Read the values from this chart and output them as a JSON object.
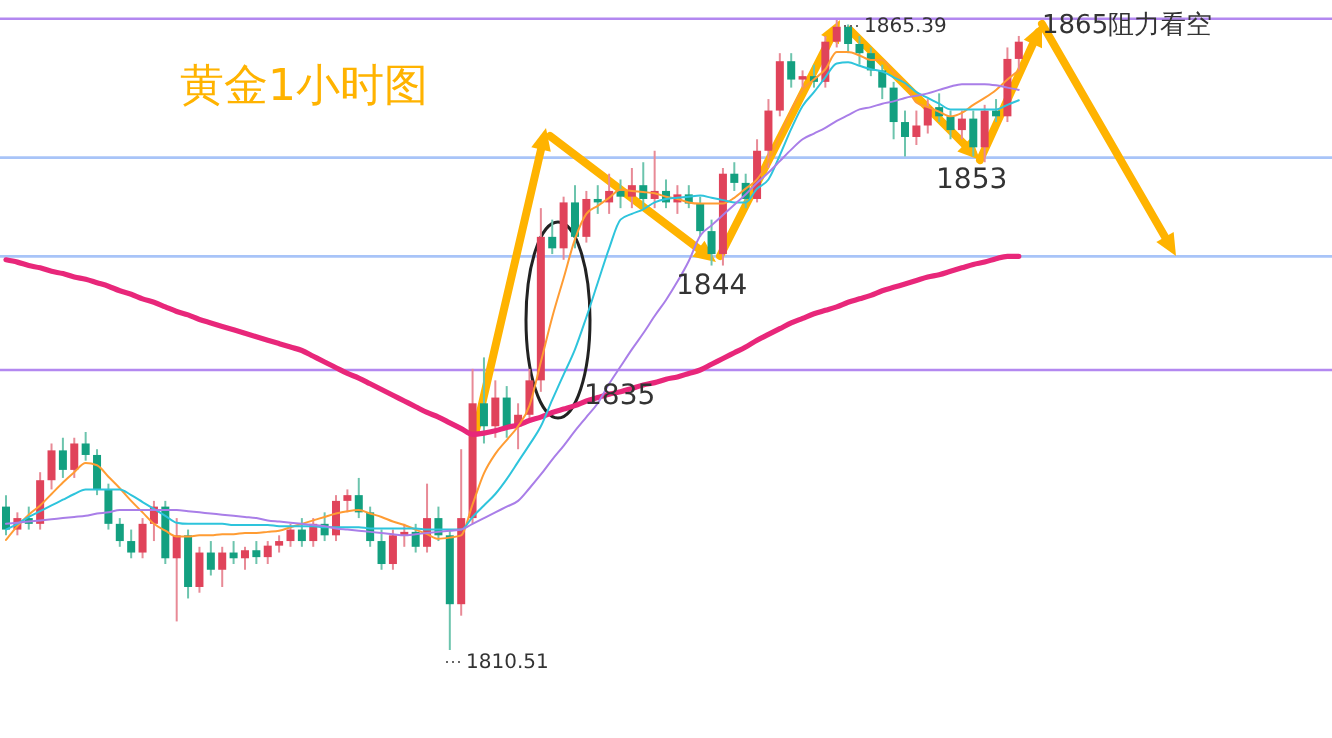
{
  "chart_data": {
    "type": "candlestick",
    "title": "黄金1小时图",
    "categories": [
      null,
      null,
      null,
      null,
      null,
      null,
      null,
      null,
      null,
      null,
      null,
      null,
      null,
      null,
      null,
      null,
      null,
      null,
      null,
      null,
      null,
      null,
      null,
      null,
      null,
      null,
      null,
      null,
      null,
      null,
      null,
      null,
      null,
      null,
      null,
      null,
      null,
      null,
      null,
      null,
      null,
      null,
      null,
      null,
      null,
      null,
      null,
      null,
      null,
      null,
      null,
      null,
      null,
      null,
      null,
      null,
      null,
      null,
      null,
      null,
      null,
      null,
      null,
      null,
      null,
      null,
      null,
      null,
      null,
      null,
      null,
      null,
      null,
      null,
      null,
      null,
      null,
      null,
      null,
      null,
      null,
      null,
      null,
      null,
      null,
      null,
      null,
      null,
      null,
      null
    ],
    "ohlc": [
      [
        1823.0,
        1824,
        1820.5,
        1821.0
      ],
      [
        1821.0,
        1822.5,
        1820.5,
        1822.0
      ],
      [
        1822,
        1823,
        1821,
        1821.5
      ],
      [
        1821.5,
        1826,
        1821,
        1825.3
      ],
      [
        1825.3,
        1828.5,
        1824.5,
        1827.9
      ],
      [
        1827.9,
        1829,
        1825.5,
        1826.2
      ],
      [
        1826.2,
        1829,
        1825.5,
        1828.5
      ],
      [
        1828.5,
        1829.5,
        1827,
        1827.5
      ],
      [
        1827.5,
        1828,
        1824,
        1824.5
      ],
      [
        1824.5,
        1825,
        1821,
        1821.5
      ],
      [
        1821.5,
        1822,
        1819.5,
        1820
      ],
      [
        1820,
        1821,
        1818.5,
        1819
      ],
      [
        1819,
        1822,
        1818.5,
        1821.5
      ],
      [
        1821.5,
        1823.5,
        1820,
        1823
      ],
      [
        1823,
        1823.5,
        1818,
        1818.5
      ],
      [
        1818.5,
        1822,
        1813,
        1820.5
      ],
      [
        1820.5,
        1821,
        1815,
        1816
      ],
      [
        1816,
        1819.5,
        1815.5,
        1819
      ],
      [
        1819,
        1820,
        1817,
        1817.5
      ],
      [
        1817.5,
        1819.5,
        1816,
        1819
      ],
      [
        1819,
        1820,
        1818,
        1818.5
      ],
      [
        1818.5,
        1819.5,
        1817.5,
        1819.2
      ],
      [
        1819.2,
        1820,
        1818,
        1818.6
      ],
      [
        1818.6,
        1820,
        1818,
        1819.6
      ],
      [
        1819.6,
        1820.5,
        1819,
        1820
      ],
      [
        1820,
        1821.5,
        1819.5,
        1821
      ],
      [
        1821,
        1822,
        1819.5,
        1820
      ],
      [
        1820,
        1822,
        1819.5,
        1821.5
      ],
      [
        1821.5,
        1822.5,
        1820,
        1820.5
      ],
      [
        1820.5,
        1824,
        1820,
        1823.5
      ],
      [
        1823.5,
        1824.5,
        1822.5,
        1824
      ],
      [
        1824,
        1825.5,
        1822,
        1822.5
      ],
      [
        1822.5,
        1823,
        1819.5,
        1820
      ],
      [
        1820,
        1821,
        1817.5,
        1818
      ],
      [
        1818,
        1821,
        1817.5,
        1820.5
      ],
      [
        1820.5,
        1821.5,
        1819.5,
        1820.8
      ],
      [
        1820.8,
        1821.5,
        1819,
        1819.5
      ],
      [
        1819.5,
        1825,
        1819,
        1822
      ],
      [
        1822,
        1823,
        1820,
        1820.5
      ],
      [
        1820.5,
        1821,
        1810.51,
        1814.5
      ],
      [
        1814.5,
        1828,
        1813.5,
        1822
      ],
      [
        1822,
        1835,
        1821.5,
        1832
      ],
      [
        1832,
        1836,
        1828.5,
        1830
      ],
      [
        1830,
        1834,
        1829,
        1832.5
      ],
      [
        1832.5,
        1833.5,
        1829,
        1830
      ],
      [
        1830,
        1832,
        1828,
        1831
      ],
      [
        1831,
        1835,
        1830.5,
        1834
      ],
      [
        1834,
        1849,
        1833,
        1846.5
      ],
      [
        1846.5,
        1848,
        1845,
        1845.5
      ],
      [
        1845.5,
        1850,
        1844.5,
        1849.5
      ],
      [
        1849.5,
        1851,
        1845.5,
        1846.5
      ],
      [
        1846.5,
        1850.5,
        1846,
        1849.8
      ],
      [
        1849.8,
        1851,
        1848.5,
        1849.5
      ],
      [
        1849.5,
        1852,
        1848.5,
        1850.5
      ],
      [
        1850.5,
        1851.5,
        1849,
        1850
      ],
      [
        1850,
        1852.5,
        1849,
        1851
      ],
      [
        1851,
        1853,
        1849,
        1849.8
      ],
      [
        1849.8,
        1854,
        1849,
        1850.5
      ],
      [
        1850.5,
        1851.5,
        1849,
        1849.5
      ],
      [
        1849.5,
        1851,
        1848.5,
        1850.2
      ],
      [
        1850.2,
        1851,
        1849,
        1849.4
      ],
      [
        1849.4,
        1850,
        1846.5,
        1847
      ],
      [
        1847,
        1848,
        1844,
        1845
      ],
      [
        1845,
        1852.5,
        1844,
        1852
      ],
      [
        1852,
        1853,
        1850.5,
        1851.2
      ],
      [
        1851.2,
        1852,
        1849,
        1849.8
      ],
      [
        1849.8,
        1855,
        1849.5,
        1854
      ],
      [
        1854,
        1858.5,
        1852.5,
        1857.5
      ],
      [
        1857.5,
        1862.5,
        1857,
        1861.8
      ],
      [
        1861.8,
        1862.5,
        1859.5,
        1860.2
      ],
      [
        1860.2,
        1861,
        1859.5,
        1860.5
      ],
      [
        1860.5,
        1861.5,
        1859.5,
        1860.0
      ],
      [
        1860,
        1864,
        1859.5,
        1863.5
      ],
      [
        1863.5,
        1865.39,
        1863,
        1864.8
      ],
      [
        1864.8,
        1865,
        1862.5,
        1863.3
      ],
      [
        1863.3,
        1864,
        1861.5,
        1862.5
      ],
      [
        1862.5,
        1863,
        1860.5,
        1861
      ],
      [
        1861,
        1861.5,
        1858.5,
        1859.5
      ],
      [
        1859.5,
        1860,
        1855,
        1856.5
      ],
      [
        1856.5,
        1857.5,
        1853.5,
        1855.2
      ],
      [
        1855.2,
        1857.5,
        1854.5,
        1856.2
      ],
      [
        1856.2,
        1858.5,
        1855.5,
        1857.8
      ],
      [
        1857.8,
        1859,
        1856.5,
        1857
      ],
      [
        1857,
        1857.5,
        1855,
        1855.8
      ],
      [
        1855.8,
        1857.5,
        1855,
        1856.8
      ],
      [
        1856.8,
        1857.5,
        1853.5,
        1854.3
      ],
      [
        1854.3,
        1858,
        1853,
        1857.5
      ],
      [
        1857.5,
        1858.5,
        1856.5,
        1857
      ],
      [
        1857,
        1863,
        1856.5,
        1862
      ],
      [
        1862,
        1864,
        1861,
        1863.5
      ]
    ],
    "series": [
      {
        "type": "line",
        "color": "#ff9c33",
        "values": [
          1820.1,
          1821.3,
          1822.3,
          1823.1,
          1824.1,
          1825.1,
          1826.0,
          1826.8,
          1826.6,
          1825.6,
          1824.6,
          1823.5,
          1822.5,
          1821.5,
          1820.9,
          1820.4,
          1820.4,
          1820.5,
          1820.5,
          1820.6,
          1820.6,
          1820.7,
          1820.7,
          1820.8,
          1820.9,
          1821.2,
          1821.5,
          1821.8,
          1822.1,
          1822.4,
          1822.6,
          1822.7,
          1822.4,
          1822.1,
          1821.7,
          1821.4,
          1821.0,
          1820.6,
          1820.2,
          1820.3,
          1820.5,
          1823.2,
          1825.9,
          1827.6,
          1828.8,
          1830.0,
          1831.8,
          1835.6,
          1839.5,
          1842.9,
          1846.3,
          1848.5,
          1849.2,
          1849.9,
          1850.6,
          1850.5,
          1850.4,
          1850.3,
          1850.0,
          1849.8,
          1849.5,
          1849.4,
          1849.4,
          1849.4,
          1849.9,
          1850.7,
          1851.5,
          1853.1,
          1855.3,
          1857.5,
          1859.3,
          1860.2,
          1861.1,
          1862.6,
          1862.6,
          1862.3,
          1861.9,
          1861.9,
          1860.8,
          1859.9,
          1858.2,
          1857.8,
          1857.4,
          1857.0,
          1857.3,
          1858.0,
          1858.6,
          1859.3,
          1860.2,
          1861.0
        ]
      },
      {
        "type": "line",
        "color": "#2ec4dc",
        "values": [
          1821.0,
          1821.5,
          1822.1,
          1822.6,
          1823.1,
          1823.6,
          1824.1,
          1824.5,
          1824.5,
          1824.5,
          1824.5,
          1824.0,
          1823.4,
          1822.8,
          1822.2,
          1821.6,
          1821.5,
          1821.5,
          1821.5,
          1821.5,
          1821.4,
          1821.4,
          1821.4,
          1821.4,
          1821.3,
          1821.3,
          1821.3,
          1821.3,
          1821.2,
          1821.2,
          1821.2,
          1821.2,
          1821.1,
          1821.1,
          1821.1,
          1821.1,
          1821.1,
          1821.0,
          1821.0,
          1821.0,
          1821.0,
          1822.1,
          1823.1,
          1824.1,
          1825.4,
          1826.9,
          1828.4,
          1830.0,
          1832.3,
          1834.5,
          1836.7,
          1839.5,
          1842.5,
          1845.5,
          1848.0,
          1848.5,
          1848.9,
          1849.5,
          1849.8,
          1849.9,
          1850.0,
          1850.1,
          1849.9,
          1849.7,
          1849.5,
          1849.5,
          1850.7,
          1851.5,
          1853.6,
          1855.9,
          1857.9,
          1859.1,
          1860.4,
          1861.6,
          1861.7,
          1861.4,
          1861.1,
          1860.9,
          1860.4,
          1859.9,
          1859.1,
          1858.6,
          1858.1,
          1857.6,
          1857.6,
          1857.6,
          1857.6,
          1857.6,
          1858.0,
          1858.4
        ]
      },
      {
        "type": "line",
        "color": "#a97ee8",
        "values": [
          1821.5,
          1821.6,
          1821.7,
          1821.8,
          1821.9,
          1822.0,
          1822.1,
          1822.2,
          1822.4,
          1822.5,
          1822.7,
          1822.7,
          1822.7,
          1822.7,
          1822.7,
          1822.7,
          1822.6,
          1822.5,
          1822.4,
          1822.3,
          1822.2,
          1822.1,
          1822.0,
          1821.8,
          1821.7,
          1821.6,
          1821.5,
          1821.4,
          1821.3,
          1821.1,
          1821.0,
          1820.9,
          1820.8,
          1820.7,
          1820.6,
          1820.5,
          1820.6,
          1820.7,
          1820.8,
          1820.9,
          1821.0,
          1821.5,
          1822.0,
          1822.5,
          1823.0,
          1823.5,
          1824.6,
          1825.8,
          1827.1,
          1828.3,
          1829.6,
          1830.8,
          1832.0,
          1833.7,
          1835.2,
          1836.7,
          1838.1,
          1839.6,
          1841.0,
          1842.6,
          1844.4,
          1846.6,
          1847.5,
          1848.4,
          1849.3,
          1850.2,
          1851.2,
          1852.1,
          1853.1,
          1854.1,
          1855.0,
          1855.5,
          1856.0,
          1856.6,
          1857.1,
          1857.6,
          1857.8,
          1858.1,
          1858.3,
          1858.6,
          1858.8,
          1859.0,
          1859.3,
          1859.6,
          1859.8,
          1859.8,
          1859.8,
          1859.7,
          1859.5,
          1859.3
        ]
      },
      {
        "type": "line",
        "color": "#e8277a",
        "values": [
          1844.5,
          1844.3,
          1844.0,
          1843.8,
          1843.5,
          1843.3,
          1843.0,
          1842.8,
          1842.5,
          1842.2,
          1841.8,
          1841.5,
          1841.1,
          1840.8,
          1840.4,
          1840.0,
          1839.7,
          1839.3,
          1839.0,
          1838.7,
          1838.4,
          1838.1,
          1837.8,
          1837.5,
          1837.2,
          1836.9,
          1836.6,
          1836.1,
          1835.6,
          1835.1,
          1834.6,
          1834.2,
          1833.7,
          1833.2,
          1832.7,
          1832.2,
          1831.7,
          1831.2,
          1830.8,
          1830.3,
          1829.8,
          1829.3,
          1829.4,
          1829.6,
          1829.9,
          1830.1,
          1830.5,
          1830.8,
          1831.2,
          1831.5,
          1831.8,
          1832.2,
          1832.5,
          1832.8,
          1833.0,
          1833.3,
          1833.6,
          1833.8,
          1834.1,
          1834.3,
          1834.6,
          1834.9,
          1835.4,
          1835.9,
          1836.4,
          1836.9,
          1837.5,
          1838.0,
          1838.5,
          1839.0,
          1839.4,
          1839.8,
          1840.1,
          1840.4,
          1840.8,
          1841.1,
          1841.4,
          1841.8,
          1842.1,
          1842.4,
          1842.7,
          1843.0,
          1843.2,
          1843.5,
          1843.8,
          1844.1,
          1844.3,
          1844.6,
          1844.8,
          1844.8
        ]
      }
    ],
    "ref_lines": [
      {
        "axis": "y",
        "value": 1865.5,
        "color": "#b388f0"
      },
      {
        "axis": "y",
        "value": 1853.4,
        "color": "#a8c4f8"
      },
      {
        "axis": "y",
        "value": 1844.8,
        "color": "#a8c4f8"
      },
      {
        "axis": "y",
        "value": 1834.9,
        "color": "#b388f0"
      }
    ],
    "annotations": [
      {
        "text": "1865阻力看空",
        "y": 1865.5
      },
      {
        "text": "1853",
        "y": 1853.4
      },
      {
        "text": "1844",
        "y": 1844.8
      },
      {
        "text": "1835",
        "y": 1834.9
      },
      "1865.39",
      "1810.51"
    ]
  }
}
